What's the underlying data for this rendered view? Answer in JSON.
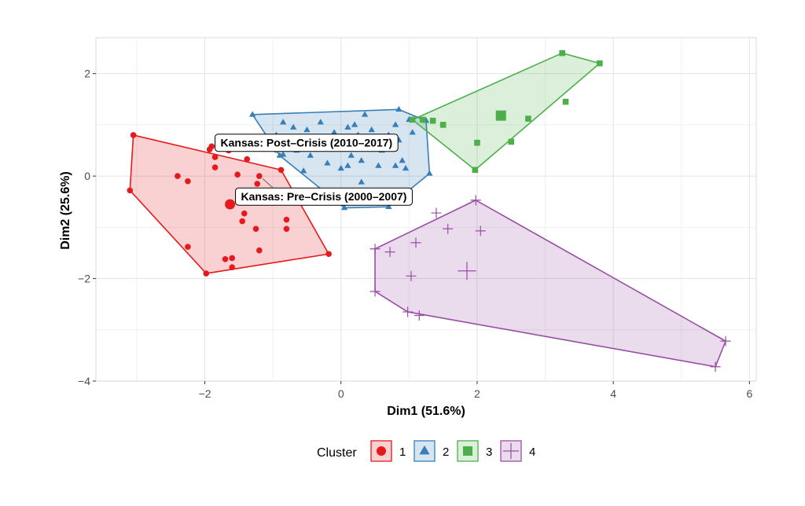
{
  "chart_data": {
    "type": "scatter",
    "title": "",
    "xlabel": "Dim1 (51.6%)",
    "ylabel": "Dim2 (25.6%)",
    "xlim": [
      -3.6,
      6.1
    ],
    "ylim": [
      -4.0,
      2.7
    ],
    "xticks": [
      -2,
      0,
      2,
      4,
      6
    ],
    "yticks": [
      -4,
      -2,
      0,
      2
    ],
    "xtick_labels": [
      "−2",
      "0",
      "2",
      "4",
      "6"
    ],
    "ytick_labels": [
      "−4",
      "−2",
      "0",
      "2"
    ],
    "grid": true,
    "legend": {
      "title": "Cluster",
      "position": "bottom",
      "entries": [
        {
          "label": "1",
          "shape": "circle",
          "color": "#E41A1C"
        },
        {
          "label": "2",
          "shape": "triangle",
          "color": "#377EB8"
        },
        {
          "label": "3",
          "shape": "square",
          "color": "#4DAF4A"
        },
        {
          "label": "4",
          "shape": "cross",
          "color": "#984EA3"
        }
      ]
    },
    "series": [
      {
        "name": "1",
        "shape": "circle",
        "color": "#E41A1C",
        "hull": [
          [
            -3.1,
            -0.28
          ],
          [
            -3.05,
            0.8
          ],
          [
            -0.88,
            0.12
          ],
          [
            -0.18,
            -1.52
          ],
          [
            -1.98,
            -1.9
          ]
        ],
        "centroid": [
          -1.63,
          -0.55
        ],
        "points": [
          [
            -3.1,
            -0.28
          ],
          [
            -3.05,
            0.8
          ],
          [
            -0.88,
            0.12
          ],
          [
            -0.18,
            -1.52
          ],
          [
            -1.98,
            -1.9
          ],
          [
            -1.9,
            0.58
          ],
          [
            -1.93,
            0.52
          ],
          [
            -1.85,
            0.37
          ],
          [
            -1.85,
            0.17
          ],
          [
            -1.65,
            0.5
          ],
          [
            -1.38,
            0.33
          ],
          [
            -1.52,
            0.03
          ],
          [
            -2.4,
            0.0
          ],
          [
            -2.25,
            -0.1
          ],
          [
            -1.2,
            0.0
          ],
          [
            -1.23,
            -0.15
          ],
          [
            -1.42,
            -0.73
          ],
          [
            -1.45,
            -0.88
          ],
          [
            -1.25,
            -1.03
          ],
          [
            -1.2,
            -1.45
          ],
          [
            -0.8,
            -0.85
          ],
          [
            -0.8,
            -1.03
          ],
          [
            -2.25,
            -1.38
          ],
          [
            -1.7,
            -1.62
          ],
          [
            -1.6,
            -1.6
          ],
          [
            -1.6,
            -1.78
          ]
        ]
      },
      {
        "name": "2",
        "shape": "triangle",
        "color": "#377EB8",
        "hull": [
          [
            -1.3,
            1.2
          ],
          [
            0.85,
            1.3
          ],
          [
            1.25,
            1.08
          ],
          [
            1.3,
            0.05
          ],
          [
            0.7,
            -0.6
          ],
          [
            0.05,
            -0.62
          ],
          [
            -0.9,
            0.4
          ]
        ],
        "centroid": [
          0.25,
          0.7
        ],
        "points": [
          [
            -1.3,
            1.2
          ],
          [
            0.85,
            1.3
          ],
          [
            1.25,
            1.08
          ],
          [
            1.3,
            0.05
          ],
          [
            0.7,
            -0.6
          ],
          [
            0.05,
            -0.62
          ],
          [
            -0.9,
            0.4
          ],
          [
            -0.85,
            0.42
          ],
          [
            -0.85,
            1.05
          ],
          [
            -0.7,
            0.95
          ],
          [
            -0.75,
            0.7
          ],
          [
            -0.65,
            0.5
          ],
          [
            -0.5,
            0.9
          ],
          [
            -0.45,
            0.4
          ],
          [
            -0.3,
            1.05
          ],
          [
            -0.3,
            0.7
          ],
          [
            -0.2,
            0.55
          ],
          [
            -0.2,
            0.25
          ],
          [
            -0.1,
            0.85
          ],
          [
            0.0,
            0.6
          ],
          [
            0.0,
            0.15
          ],
          [
            0.1,
            0.95
          ],
          [
            0.15,
            0.4
          ],
          [
            0.2,
            1.0
          ],
          [
            0.25,
            0.8
          ],
          [
            0.25,
            0.6
          ],
          [
            0.3,
            0.3
          ],
          [
            0.3,
            -0.12
          ],
          [
            0.35,
            1.2
          ],
          [
            0.45,
            0.9
          ],
          [
            0.5,
            0.6
          ],
          [
            0.55,
            0.2
          ],
          [
            0.6,
            0.5
          ],
          [
            0.7,
            0.8
          ],
          [
            0.8,
            1.0
          ],
          [
            0.85,
            0.7
          ],
          [
            0.9,
            0.3
          ],
          [
            1.0,
            1.1
          ],
          [
            1.05,
            0.85
          ],
          [
            0.95,
            0.15
          ],
          [
            0.8,
            0.2
          ],
          [
            0.1,
            0.2
          ],
          [
            -0.55,
            0.1
          ],
          [
            -0.95,
            0.8
          ],
          [
            0.35,
            0.55
          ]
        ]
      },
      {
        "name": "3",
        "shape": "square",
        "color": "#4DAF4A",
        "hull": [
          [
            1.05,
            1.1
          ],
          [
            3.25,
            2.4
          ],
          [
            3.8,
            2.2
          ],
          [
            1.97,
            0.12
          ]
        ],
        "centroid": [
          2.35,
          1.18
        ],
        "points": [
          [
            1.05,
            1.1
          ],
          [
            3.25,
            2.4
          ],
          [
            3.8,
            2.2
          ],
          [
            1.97,
            0.12
          ],
          [
            1.35,
            1.08
          ],
          [
            1.5,
            1.0
          ],
          [
            2.0,
            0.65
          ],
          [
            2.5,
            0.67
          ],
          [
            2.75,
            1.12
          ],
          [
            3.3,
            1.45
          ],
          [
            1.2,
            1.1
          ]
        ]
      },
      {
        "name": "4",
        "shape": "cross",
        "color": "#984EA3",
        "hull": [
          [
            0.5,
            -1.42
          ],
          [
            1.98,
            -0.47
          ],
          [
            5.65,
            -3.22
          ],
          [
            5.5,
            -3.72
          ],
          [
            0.98,
            -2.65
          ],
          [
            0.5,
            -2.25
          ]
        ],
        "centroid": [
          1.85,
          -1.85
        ],
        "points": [
          [
            0.5,
            -1.42
          ],
          [
            1.98,
            -0.47
          ],
          [
            5.65,
            -3.22
          ],
          [
            5.5,
            -3.72
          ],
          [
            0.98,
            -2.65
          ],
          [
            0.5,
            -2.25
          ],
          [
            1.4,
            -0.72
          ],
          [
            1.57,
            -1.03
          ],
          [
            2.05,
            -1.07
          ],
          [
            1.1,
            -1.3
          ],
          [
            0.72,
            -1.48
          ],
          [
            1.03,
            -1.95
          ],
          [
            1.15,
            -2.72
          ]
        ]
      }
    ],
    "annotations": [
      {
        "text": "Kansas: Post–Crisis (2010–2017)",
        "point": [
          -0.95,
          0.45
        ],
        "anchor": [
          -1.85,
          0.65
        ]
      },
      {
        "text": "Kansas: Pre–Crisis (2000–2007)",
        "point": [
          -1.15,
          -0.05
        ],
        "anchor": [
          -1.55,
          -0.4
        ]
      }
    ]
  }
}
